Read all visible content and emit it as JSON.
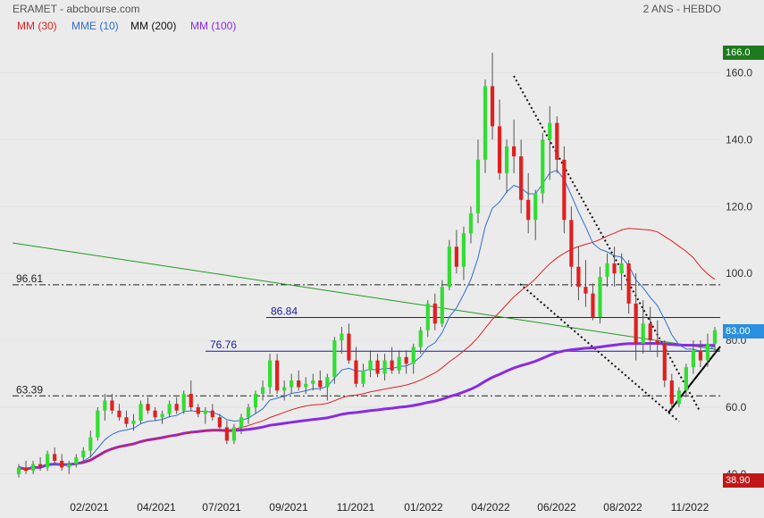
{
  "header": {
    "title": "ERAMET - abcbourse.com",
    "period": "2 ANS - HEBDO"
  },
  "legend": [
    {
      "label": "MM (30)",
      "color": "#e02020"
    },
    {
      "label": "MME (10)",
      "color": "#2f6fd0"
    },
    {
      "label": "MM (200)",
      "color": "#111111"
    },
    {
      "label": "MM (100)",
      "color": "#8a2be2"
    }
  ],
  "price_tags": {
    "high": "166.0",
    "last": "83.00",
    "low": "38.90"
  },
  "colors": {
    "up": "#33dd33",
    "down": "#e02020",
    "mm30": "#e02020",
    "mme10": "#2f6fd0",
    "mm100": "#8a2be2",
    "trend": "#229922",
    "level": "#1a1aa0"
  },
  "chart_data": {
    "type": "candlestick",
    "y_range": [
      38.9,
      166.0
    ],
    "y_ticks": [
      "160.0",
      "140.0",
      "120.0",
      "100.0",
      "80.0",
      "60.0",
      "40.0"
    ],
    "x_ticks": [
      "02/2021",
      "04/2021",
      "07/2021",
      "09/2021",
      "11/2021",
      "01/2022",
      "04/2022",
      "06/2022",
      "08/2022",
      "11/2022"
    ],
    "levels": [
      {
        "label": "96.61",
        "value": 96.61,
        "style": "dashdot"
      },
      {
        "label": "86.84",
        "value": 86.84,
        "style": "solid"
      },
      {
        "label": "76.76",
        "value": 76.76,
        "style": "solid"
      },
      {
        "label": "63.39",
        "value": 63.39,
        "style": "dashdot"
      }
    ],
    "candles": [
      [
        40,
        43,
        39,
        42
      ],
      [
        42,
        44,
        40,
        41
      ],
      [
        41,
        44,
        40,
        43
      ],
      [
        43,
        45,
        41,
        42
      ],
      [
        42,
        47,
        41,
        46
      ],
      [
        46,
        48,
        43,
        44
      ],
      [
        44,
        46,
        41,
        42
      ],
      [
        42,
        44,
        40,
        43
      ],
      [
        43,
        46,
        42,
        45
      ],
      [
        45,
        48,
        44,
        47
      ],
      [
        47,
        53,
        45,
        51
      ],
      [
        51,
        60,
        50,
        59
      ],
      [
        59,
        64,
        56,
        62
      ],
      [
        62,
        64,
        58,
        59
      ],
      [
        59,
        61,
        56,
        57
      ],
      [
        57,
        59,
        54,
        55
      ],
      [
        55,
        58,
        53,
        56
      ],
      [
        56,
        62,
        55,
        61
      ],
      [
        61,
        63,
        58,
        59
      ],
      [
        59,
        60,
        56,
        57
      ],
      [
        57,
        59,
        55,
        58
      ],
      [
        58,
        62,
        57,
        61
      ],
      [
        61,
        63,
        58,
        59
      ],
      [
        59,
        65,
        58,
        64
      ],
      [
        64,
        68,
        59,
        60
      ],
      [
        60,
        61,
        57,
        58
      ],
      [
        58,
        60,
        55,
        59
      ],
      [
        59,
        61,
        56,
        57
      ],
      [
        57,
        58,
        53,
        54
      ],
      [
        54,
        56,
        49,
        50
      ],
      [
        50,
        55,
        49,
        54
      ],
      [
        54,
        58,
        52,
        57
      ],
      [
        57,
        61,
        55,
        60
      ],
      [
        60,
        65,
        58,
        64
      ],
      [
        64,
        68,
        62,
        66
      ],
      [
        66,
        76,
        64,
        74
      ],
      [
        74,
        76,
        64,
        65
      ],
      [
        65,
        68,
        62,
        66
      ],
      [
        66,
        70,
        64,
        68
      ],
      [
        68,
        71,
        65,
        66
      ],
      [
        66,
        69,
        64,
        67
      ],
      [
        67,
        70,
        65,
        68
      ],
      [
        68,
        71,
        65,
        66
      ],
      [
        66,
        70,
        62,
        69
      ],
      [
        69,
        81,
        67,
        80
      ],
      [
        80,
        84,
        76,
        82
      ],
      [
        82,
        85,
        73,
        74
      ],
      [
        74,
        78,
        66,
        67
      ],
      [
        67,
        73,
        66,
        71
      ],
      [
        71,
        77,
        69,
        74
      ],
      [
        74,
        76,
        69,
        70
      ],
      [
        70,
        76,
        68,
        74
      ],
      [
        74,
        78,
        70,
        71
      ],
      [
        71,
        77,
        70,
        75
      ],
      [
        75,
        77,
        70,
        73
      ],
      [
        73,
        79,
        70,
        78
      ],
      [
        78,
        84,
        76,
        83
      ],
      [
        83,
        92,
        81,
        91
      ],
      [
        91,
        94,
        83,
        85
      ],
      [
        85,
        98,
        84,
        96
      ],
      [
        96,
        110,
        95,
        108
      ],
      [
        108,
        113,
        100,
        102
      ],
      [
        102,
        114,
        98,
        112
      ],
      [
        112,
        120,
        109,
        118
      ],
      [
        118,
        140,
        115,
        134
      ],
      [
        134,
        158,
        130,
        156
      ],
      [
        156,
        166,
        140,
        144
      ],
      [
        144,
        152,
        128,
        130
      ],
      [
        130,
        140,
        124,
        138
      ],
      [
        138,
        146,
        130,
        135
      ],
      [
        135,
        140,
        118,
        122
      ],
      [
        122,
        130,
        112,
        116
      ],
      [
        116,
        125,
        110,
        124
      ],
      [
        124,
        142,
        121,
        140
      ],
      [
        140,
        150,
        128,
        145
      ],
      [
        145,
        147,
        130,
        134
      ],
      [
        134,
        138,
        112,
        116
      ],
      [
        116,
        120,
        96,
        102
      ],
      [
        102,
        108,
        92,
        96
      ],
      [
        96,
        104,
        90,
        94
      ],
      [
        94,
        97,
        86,
        87
      ],
      [
        87,
        102,
        85,
        99
      ],
      [
        99,
        106,
        96,
        103
      ],
      [
        103,
        108,
        96,
        100
      ],
      [
        100,
        106,
        95,
        103
      ],
      [
        103,
        104,
        88,
        91
      ],
      [
        91,
        100,
        74,
        79
      ],
      [
        79,
        92,
        76,
        85
      ],
      [
        85,
        90,
        77,
        80
      ],
      [
        80,
        86,
        75,
        79
      ],
      [
        79,
        80,
        66,
        68
      ],
      [
        68,
        70,
        59,
        61
      ],
      [
        61,
        66,
        60,
        65
      ],
      [
        65,
        73,
        63,
        72
      ],
      [
        72,
        80,
        70,
        77
      ],
      [
        77,
        80,
        72,
        74
      ],
      [
        74,
        82,
        72,
        79
      ],
      [
        79,
        84,
        76,
        83
      ]
    ]
  }
}
